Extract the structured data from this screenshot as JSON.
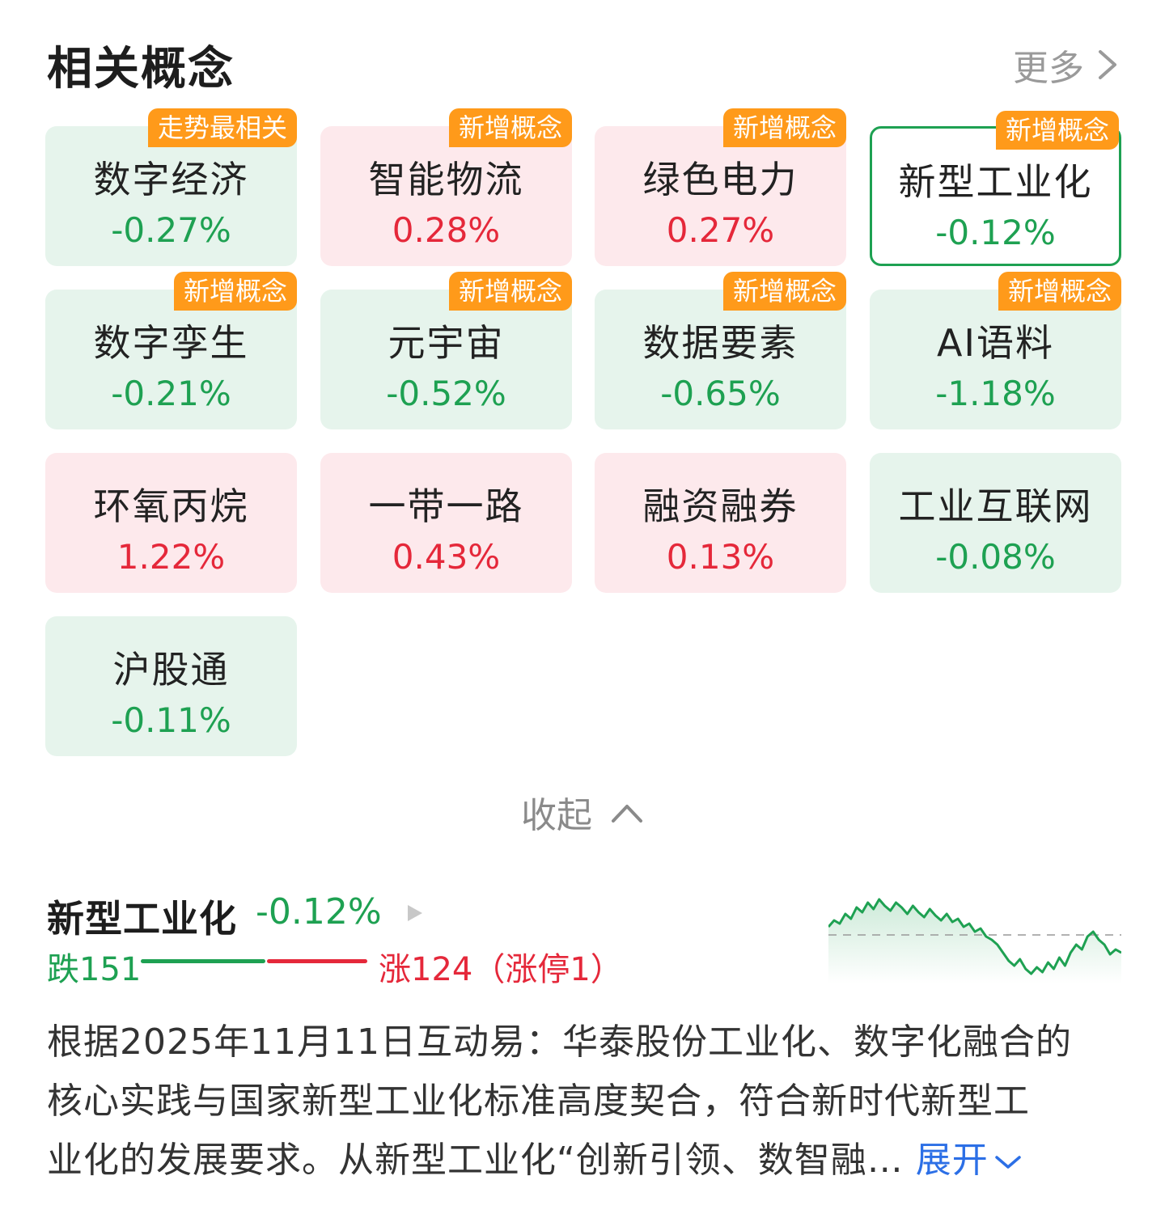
{
  "header": {
    "title": "相关概念",
    "more_label": "更多"
  },
  "concepts": [
    {
      "name": "数字经济",
      "pct": "-0.27%",
      "trend": "down",
      "tag": "走势最相关"
    },
    {
      "name": "智能物流",
      "pct": "0.28%",
      "trend": "up",
      "tag": "新增概念"
    },
    {
      "name": "绿色电力",
      "pct": "0.27%",
      "trend": "up",
      "tag": "新增概念"
    },
    {
      "name": "新型工业化",
      "pct": "-0.12%",
      "trend": "down",
      "tag": "新增概念",
      "selected": true
    },
    {
      "name": "数字孪生",
      "pct": "-0.21%",
      "trend": "down",
      "tag": "新增概念"
    },
    {
      "name": "元宇宙",
      "pct": "-0.52%",
      "trend": "down",
      "tag": "新增概念"
    },
    {
      "name": "数据要素",
      "pct": "-0.65%",
      "trend": "down",
      "tag": "新增概念"
    },
    {
      "name": "AI语料",
      "pct": "-1.18%",
      "trend": "down",
      "tag": "新增概念"
    },
    {
      "name": "环氧丙烷",
      "pct": "1.22%",
      "trend": "up",
      "tag": ""
    },
    {
      "name": "一带一路",
      "pct": "0.43%",
      "trend": "up",
      "tag": ""
    },
    {
      "name": "融资融券",
      "pct": "0.13%",
      "trend": "up",
      "tag": ""
    },
    {
      "name": "工业互联网",
      "pct": "-0.08%",
      "trend": "down",
      "tag": ""
    },
    {
      "name": "沪股通",
      "pct": "-0.11%",
      "trend": "down",
      "tag": ""
    }
  ],
  "collapse_label": "收起",
  "detail": {
    "name": "新型工业化",
    "pct": "-0.12%",
    "fall_label": "跌151",
    "rise_label": "涨124（涨停1）",
    "fall_count": 151,
    "rise_count": 124,
    "colors": {
      "up": "#e5283a",
      "down": "#1ea152",
      "tag": "#ff9a1a",
      "link": "#2c6fe6"
    },
    "sparkline": [
      0.62,
      0.7,
      0.66,
      0.78,
      0.72,
      0.86,
      0.8,
      0.92,
      0.84,
      0.96,
      0.88,
      0.82,
      0.92,
      0.86,
      0.78,
      0.88,
      0.8,
      0.74,
      0.84,
      0.76,
      0.7,
      0.78,
      0.68,
      0.72,
      0.62,
      0.66,
      0.56,
      0.6,
      0.5,
      0.46,
      0.4,
      0.3,
      0.2,
      0.14,
      0.22,
      0.1,
      0.04,
      0.12,
      0.06,
      0.18,
      0.1,
      0.24,
      0.14,
      0.3,
      0.4,
      0.34,
      0.5,
      0.56,
      0.46,
      0.4,
      0.28,
      0.34,
      0.3
    ],
    "baseline": 0.52
  },
  "description": {
    "lines": [
      "根据2025年11月11日互动易：华泰股份工业化、数字化融合的",
      "核心实践与国家新型工业化标准高度契合，符合新时代新型工",
      "业化的发展要求。从新型工业化“创新引领、数智融…"
    ],
    "expand_label": "展开"
  }
}
